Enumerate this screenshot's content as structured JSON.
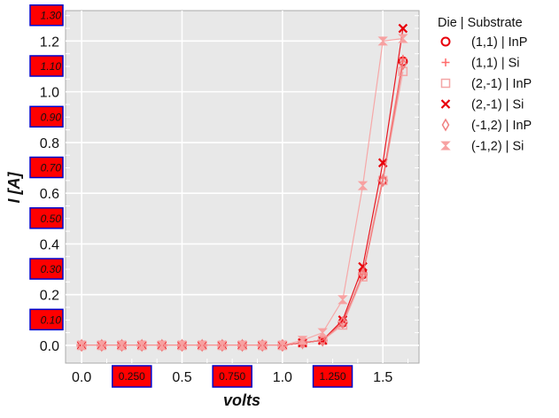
{
  "chart_data": {
    "type": "line",
    "xlabel": "volts",
    "ylabel": "I [A]",
    "xlim": [
      -0.08,
      1.68
    ],
    "ylim": [
      -0.07,
      1.32
    ],
    "grid": true,
    "legend_position": "outside-right-top",
    "legend_title": "Die | Substrate",
    "x_major_ticks": [
      "0.0",
      "0.5",
      "1.0",
      "1.5"
    ],
    "x_major_values": [
      0.0,
      0.5,
      1.0,
      1.5
    ],
    "x_minor_ticks": [
      "0.250",
      "0.750",
      "1.250"
    ],
    "x_minor_values": [
      0.25,
      0.75,
      1.25
    ],
    "y_major_ticks": [
      "0.0",
      "0.2",
      "0.4",
      "0.6",
      "0.8",
      "1.0",
      "1.2"
    ],
    "y_major_values": [
      0.0,
      0.2,
      0.4,
      0.6,
      0.8,
      1.0,
      1.2
    ],
    "y_minor_ticks": [
      "0.10",
      "0.30",
      "0.50",
      "0.70",
      "0.90",
      "1.10",
      "1.30"
    ],
    "y_minor_values": [
      0.1,
      0.3,
      0.5,
      0.7,
      0.9,
      1.1,
      1.3
    ],
    "x": [
      0.0,
      0.1,
      0.2,
      0.3,
      0.4,
      0.5,
      0.6,
      0.7,
      0.8,
      0.9,
      1.0,
      1.1,
      1.2,
      1.3,
      1.4,
      1.5,
      1.6
    ],
    "series": [
      {
        "name": "(1,1) | InP",
        "marker": "circle",
        "color": "#e8000b",
        "values": [
          0,
          0,
          0,
          0,
          0,
          0,
          0,
          0,
          0,
          0,
          0,
          0.01,
          0.02,
          0.09,
          0.28,
          0.65,
          1.12
        ]
      },
      {
        "name": "(1,1) | Si",
        "marker": "plus",
        "color": "#ff6b6b",
        "values": [
          0,
          0,
          0,
          0,
          0,
          0,
          0,
          0,
          0,
          0,
          0,
          0.01,
          0.02,
          0.09,
          0.28,
          0.66,
          1.13
        ]
      },
      {
        "name": "(2,-1) | InP",
        "marker": "square",
        "color": "#f4a6a6",
        "values": [
          0,
          0,
          0,
          0,
          0,
          0,
          0,
          0,
          0,
          0,
          0,
          0.01,
          0.02,
          0.08,
          0.27,
          0.65,
          1.08
        ]
      },
      {
        "name": "(2,-1) | Si",
        "marker": "x",
        "color": "#e8000b",
        "values": [
          0,
          0,
          0,
          0,
          0,
          0,
          0,
          0,
          0,
          0,
          0,
          0.01,
          0.02,
          0.1,
          0.31,
          0.72,
          1.25
        ]
      },
      {
        "name": "(-1,2) | InP",
        "marker": "diamond",
        "color": "#f08080",
        "values": [
          0,
          0,
          0,
          0,
          0,
          0,
          0,
          0,
          0,
          0,
          0,
          0.01,
          0.02,
          0.09,
          0.28,
          0.65,
          1.11
        ]
      },
      {
        "name": "(-1,2) | Si",
        "marker": "hourglass",
        "color": "#f7a1a1",
        "values": [
          0,
          0,
          0,
          0,
          0,
          0,
          0,
          0,
          0,
          0,
          0,
          0.02,
          0.05,
          0.18,
          0.63,
          1.2,
          1.21
        ]
      }
    ]
  },
  "colors": {
    "plot_background": "#e8e8e8",
    "grid": "#ffffff",
    "highlight_box": "#ff0000",
    "highlight_border": "#0000cc"
  }
}
